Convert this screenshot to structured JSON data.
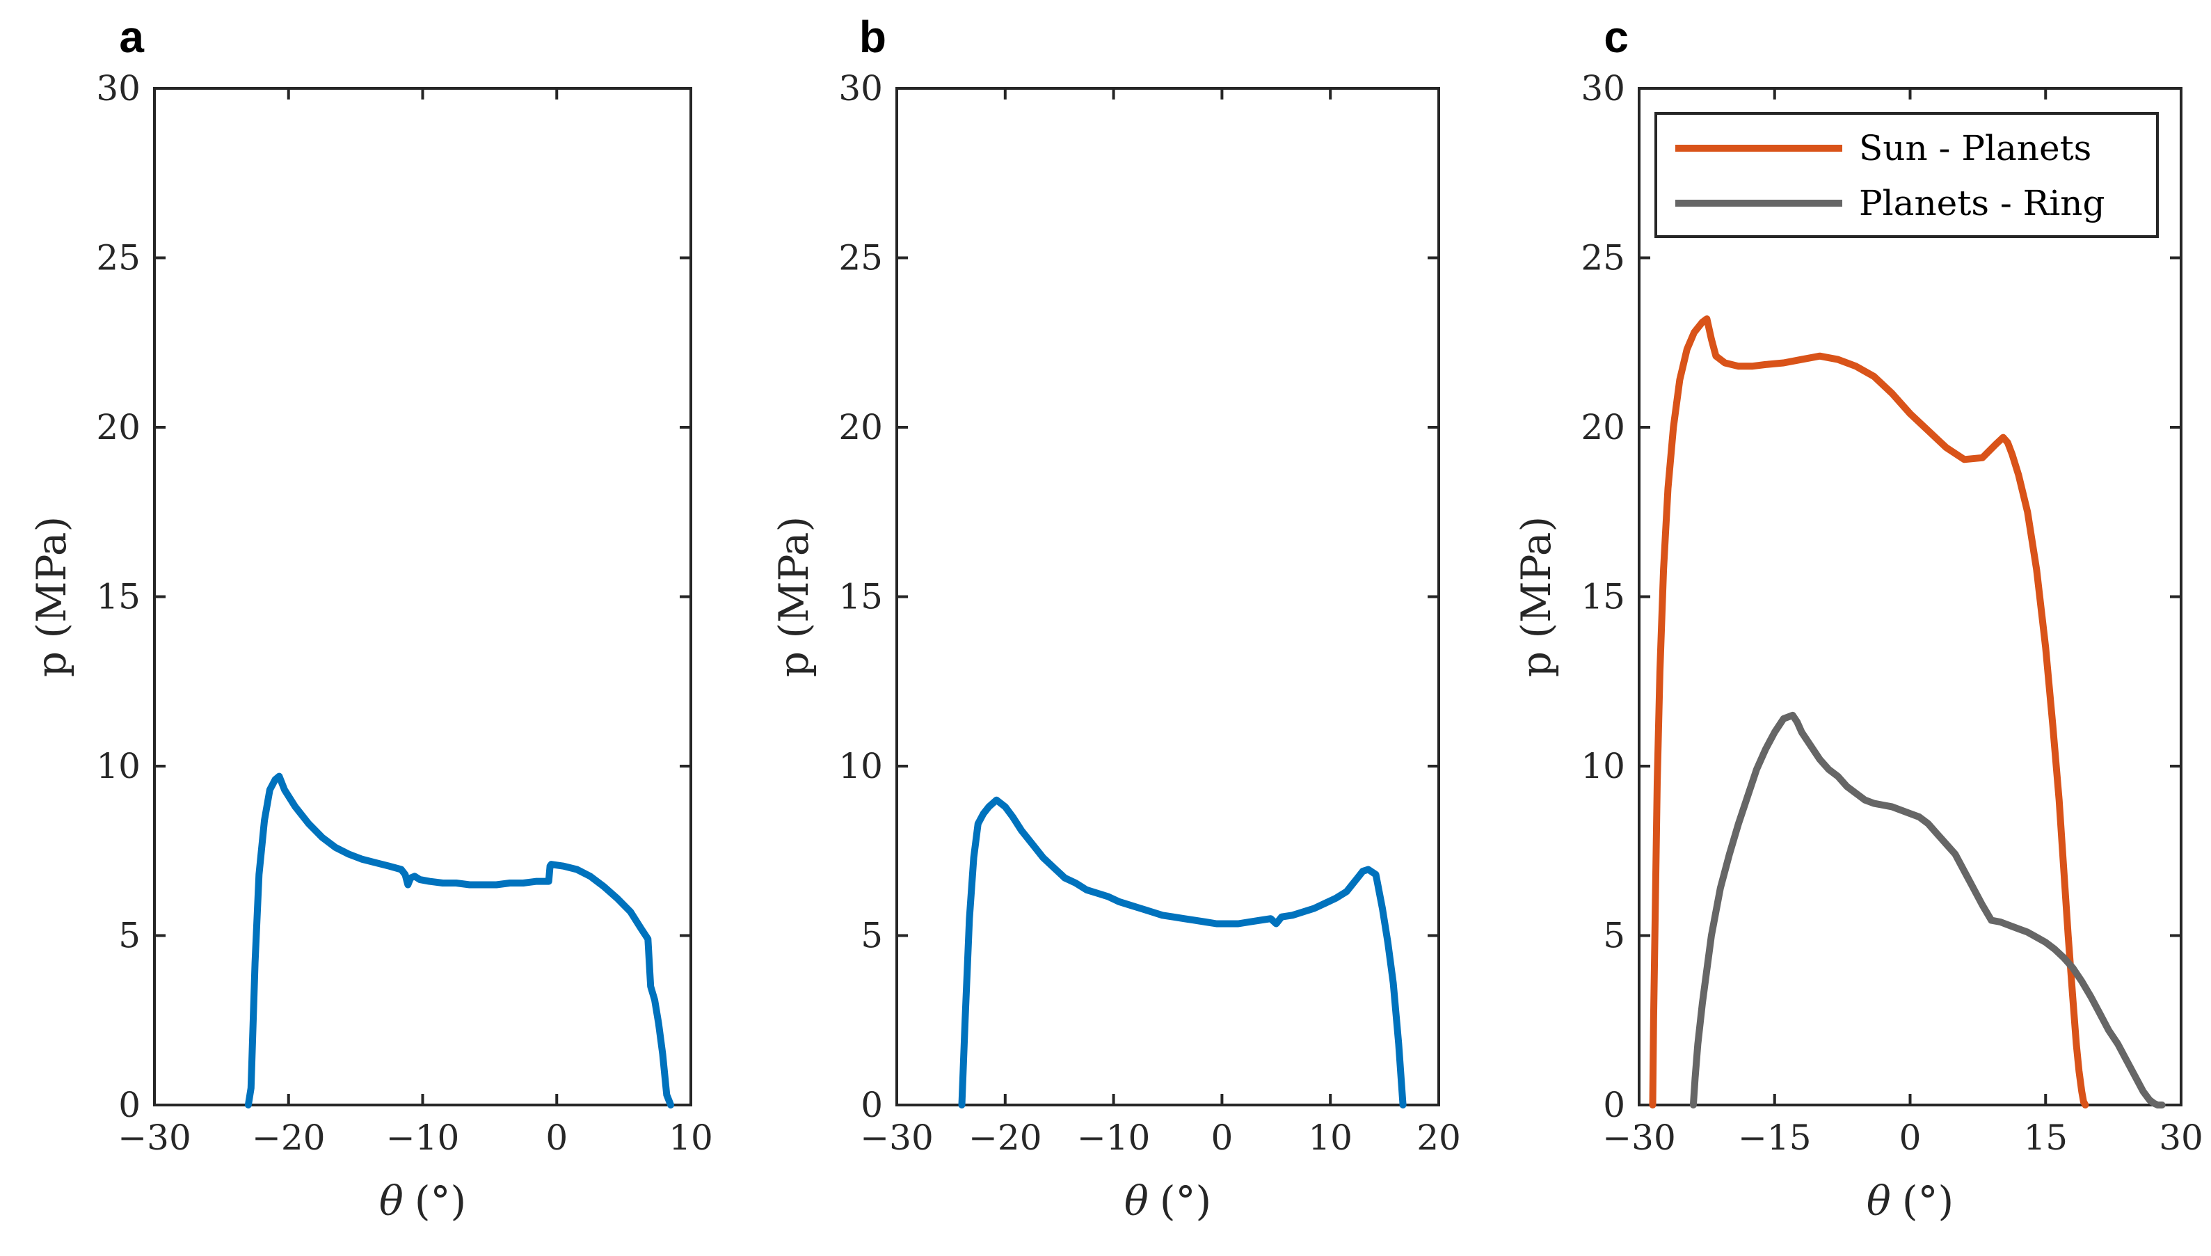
{
  "chart_data": [
    {
      "panel_label": "a",
      "type": "line",
      "xlabel_symbol": "θ",
      "xlabel_unit": "(°)",
      "ylabel": "p (MPa)",
      "xlim": [
        -30,
        10
      ],
      "ylim": [
        0,
        30
      ],
      "xticks": [
        "−30",
        "−20",
        "−10",
        "0",
        "10"
      ],
      "xtick_values": [
        -30,
        -20,
        -10,
        0,
        10
      ],
      "yticks": [
        "0",
        "5",
        "10",
        "15",
        "20",
        "25",
        "30"
      ],
      "ytick_values": [
        0,
        5,
        10,
        15,
        20,
        25,
        30
      ],
      "series": [
        {
          "color": "#0072BD",
          "x": [
            -23.0,
            -22.8,
            -22.5,
            -22.2,
            -21.8,
            -21.4,
            -21.0,
            -20.7,
            -20.3,
            -19.5,
            -18.5,
            -17.5,
            -16.5,
            -15.5,
            -14.5,
            -13.5,
            -12.5,
            -11.6,
            -11.3,
            -11.1,
            -10.9,
            -10.6,
            -10.2,
            -9.5,
            -8.5,
            -7.5,
            -6.5,
            -5.5,
            -4.5,
            -3.5,
            -2.5,
            -1.5,
            -0.6,
            -0.5,
            -0.4,
            0.5,
            1.5,
            2.5,
            3.5,
            4.5,
            5.5,
            6.3,
            6.8,
            7.0,
            7.3,
            7.6,
            7.9,
            8.2,
            8.5
          ],
          "y": [
            0,
            0.5,
            4.2,
            6.8,
            8.4,
            9.3,
            9.6,
            9.7,
            9.3,
            8.8,
            8.3,
            7.9,
            7.6,
            7.4,
            7.25,
            7.15,
            7.05,
            6.95,
            6.8,
            6.5,
            6.7,
            6.75,
            6.65,
            6.6,
            6.55,
            6.55,
            6.5,
            6.5,
            6.5,
            6.55,
            6.55,
            6.6,
            6.6,
            7.05,
            7.1,
            7.05,
            6.95,
            6.75,
            6.45,
            6.1,
            5.7,
            5.2,
            4.9,
            3.5,
            3.1,
            2.4,
            1.5,
            0.3,
            0
          ]
        }
      ]
    },
    {
      "panel_label": "b",
      "type": "line",
      "xlabel_symbol": "θ",
      "xlabel_unit": "(°)",
      "ylabel": "p (MPa)",
      "xlim": [
        -30,
        20
      ],
      "ylim": [
        0,
        30
      ],
      "xticks": [
        "−30",
        "−20",
        "−10",
        "0",
        "10",
        "20"
      ],
      "xtick_values": [
        -30,
        -20,
        -10,
        0,
        10,
        20
      ],
      "yticks": [
        "0",
        "5",
        "10",
        "15",
        "20",
        "25",
        "30"
      ],
      "ytick_values": [
        0,
        5,
        10,
        15,
        20,
        25,
        30
      ],
      "series": [
        {
          "color": "#0072BD",
          "x": [
            -24.0,
            -23.7,
            -23.3,
            -22.9,
            -22.5,
            -22.0,
            -21.5,
            -20.8,
            -20.0,
            -19.3,
            -18.5,
            -17.5,
            -16.5,
            -15.5,
            -14.5,
            -13.5,
            -12.5,
            -11.5,
            -10.5,
            -9.5,
            -8.5,
            -7.5,
            -6.5,
            -5.5,
            -4.5,
            -3.5,
            -2.5,
            -1.5,
            -0.5,
            0.5,
            1.5,
            2.5,
            3.5,
            4.5,
            5.0,
            5.5,
            6.5,
            7.5,
            8.5,
            9.5,
            10.5,
            11.5,
            12.5,
            13.0,
            13.5,
            14.2,
            14.8,
            15.3,
            15.8,
            16.3,
            16.7
          ],
          "y": [
            0,
            2.5,
            5.5,
            7.3,
            8.3,
            8.6,
            8.8,
            9.0,
            8.8,
            8.5,
            8.1,
            7.7,
            7.3,
            7.0,
            6.7,
            6.55,
            6.35,
            6.25,
            6.15,
            6.0,
            5.9,
            5.8,
            5.7,
            5.6,
            5.55,
            5.5,
            5.45,
            5.4,
            5.35,
            5.35,
            5.35,
            5.4,
            5.45,
            5.5,
            5.35,
            5.55,
            5.6,
            5.7,
            5.8,
            5.95,
            6.1,
            6.3,
            6.7,
            6.9,
            6.95,
            6.8,
            5.8,
            4.8,
            3.6,
            1.8,
            0
          ]
        }
      ]
    },
    {
      "panel_label": "c",
      "type": "line",
      "xlabel_symbol": "θ",
      "xlabel_unit": "(°)",
      "ylabel": "p (MPa)",
      "xlim": [
        -30,
        30
      ],
      "ylim": [
        0,
        30
      ],
      "xticks": [
        "−30",
        "−15",
        "0",
        "15",
        "30"
      ],
      "xtick_values": [
        -30,
        -15,
        0,
        15,
        30
      ],
      "yticks": [
        "0",
        "5",
        "10",
        "15",
        "20",
        "25",
        "30"
      ],
      "ytick_values": [
        0,
        5,
        10,
        15,
        20,
        25,
        30
      ],
      "legend_position": "top-right",
      "series": [
        {
          "name": "Sun - Planets",
          "color": "#D95319",
          "x": [
            -28.5,
            -28.4,
            -28.2,
            -28.0,
            -27.7,
            -27.3,
            -26.8,
            -26.2,
            -25.5,
            -24.7,
            -23.9,
            -23.0,
            -22.5,
            -22.0,
            -21.5,
            -20.5,
            -19.0,
            -17.5,
            -16.0,
            -14.0,
            -12.0,
            -10.0,
            -8.0,
            -6.0,
            -4.0,
            -2.0,
            0.0,
            2.0,
            4.0,
            6.0,
            8.0,
            9.5,
            10.3,
            10.8,
            11.3,
            12.0,
            13.0,
            14.0,
            15.0,
            15.8,
            16.5,
            17.0,
            17.5,
            18.0,
            18.4,
            18.7,
            19.0,
            19.2,
            19.4
          ],
          "y": [
            0,
            2.5,
            6,
            9.5,
            12.8,
            15.8,
            18.2,
            20.0,
            21.4,
            22.3,
            22.8,
            23.1,
            23.2,
            22.6,
            22.1,
            21.9,
            21.8,
            21.8,
            21.85,
            21.9,
            22.0,
            22.1,
            22.0,
            21.8,
            21.5,
            21.0,
            20.4,
            19.9,
            19.4,
            19.05,
            19.1,
            19.5,
            19.7,
            19.55,
            19.2,
            18.6,
            17.5,
            15.8,
            13.5,
            11.2,
            9.0,
            7.0,
            5.0,
            3.2,
            1.8,
            1.0,
            0.4,
            0.1,
            0
          ]
        },
        {
          "name": "Planets - Ring",
          "color": "#666666",
          "x": [
            -24.0,
            -23.8,
            -23.5,
            -23.0,
            -22.5,
            -22.0,
            -21.0,
            -20.0,
            -19.0,
            -18.0,
            -17.0,
            -16.0,
            -15.0,
            -14.0,
            -13.0,
            -12.5,
            -12.0,
            -11.0,
            -10.0,
            -9.0,
            -8.0,
            -7.0,
            -6.0,
            -5.0,
            -4.0,
            -3.0,
            -2.0,
            -1.0,
            0.0,
            1.0,
            2.0,
            3.0,
            4.0,
            5.0,
            6.0,
            7.0,
            8.0,
            9.0,
            10.0,
            11.0,
            12.0,
            13.0,
            14.0,
            15.0,
            16.0,
            17.0,
            18.0,
            19.0,
            20.0,
            21.0,
            22.0,
            23.0,
            24.0,
            25.0,
            25.8,
            26.5,
            27.0,
            27.4,
            27.7,
            27.9
          ],
          "y": [
            0,
            0.8,
            1.8,
            3.0,
            4.0,
            5.0,
            6.4,
            7.4,
            8.3,
            9.1,
            9.9,
            10.5,
            11.0,
            11.4,
            11.5,
            11.3,
            11.0,
            10.6,
            10.2,
            9.9,
            9.7,
            9.4,
            9.2,
            9.0,
            8.9,
            8.85,
            8.8,
            8.7,
            8.6,
            8.5,
            8.3,
            8.0,
            7.7,
            7.4,
            6.9,
            6.4,
            5.9,
            5.45,
            5.4,
            5.3,
            5.2,
            5.1,
            4.95,
            4.8,
            4.6,
            4.35,
            4.05,
            3.65,
            3.2,
            2.7,
            2.2,
            1.8,
            1.3,
            0.8,
            0.4,
            0.15,
            0.05,
            0.0,
            0.0,
            0.0
          ]
        }
      ]
    }
  ]
}
